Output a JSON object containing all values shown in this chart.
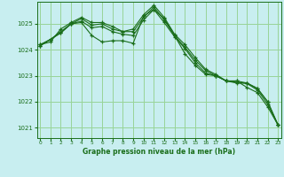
{
  "xlabel": "Graphe pression niveau de la mer (hPa)",
  "background_color": "#c8eef0",
  "grid_color": "#98d498",
  "line_color": "#1a6e1a",
  "ylim": [
    1020.6,
    1025.85
  ],
  "yticks": [
    1021,
    1022,
    1023,
    1024,
    1025
  ],
  "xlim": [
    -0.3,
    23.3
  ],
  "xticks": [
    0,
    1,
    2,
    3,
    4,
    5,
    6,
    7,
    8,
    9,
    10,
    11,
    12,
    13,
    14,
    15,
    16,
    17,
    18,
    19,
    20,
    21,
    22,
    23
  ],
  "series": [
    [
      1024.2,
      1024.4,
      1024.7,
      1025.0,
      1025.05,
      1024.55,
      1024.3,
      1024.35,
      1024.35,
      1024.25,
      1025.3,
      1025.55,
      1025.2,
      1024.55,
      1023.85,
      1023.4,
      1023.05,
      1023.0,
      1022.8,
      1022.8,
      1022.55,
      1022.35,
      1021.8,
      1021.1
    ],
    [
      1024.15,
      1024.4,
      1024.65,
      1025.0,
      1025.1,
      1024.85,
      1024.9,
      1024.7,
      1024.6,
      1024.55,
      1025.15,
      1025.55,
      1025.05,
      1024.5,
      1024.05,
      1023.5,
      1023.1,
      1023.0,
      1022.8,
      1022.75,
      1022.7,
      1022.45,
      1021.9,
      1021.1
    ],
    [
      1024.15,
      1024.4,
      1024.65,
      1025.0,
      1025.2,
      1024.95,
      1025.0,
      1024.8,
      1024.7,
      1024.7,
      1025.25,
      1025.65,
      1025.15,
      1024.55,
      1024.1,
      1023.6,
      1023.2,
      1023.0,
      1022.8,
      1022.72,
      1022.72,
      1022.5,
      1022.0,
      1021.1
    ],
    [
      1024.2,
      1024.3,
      1024.8,
      1025.05,
      1025.25,
      1025.05,
      1025.05,
      1024.9,
      1024.7,
      1024.8,
      1025.35,
      1025.72,
      1025.25,
      1024.6,
      1024.2,
      1023.7,
      1023.25,
      1023.05,
      1022.8,
      1022.8,
      1022.72,
      1022.52,
      1022.0,
      1021.1
    ]
  ]
}
